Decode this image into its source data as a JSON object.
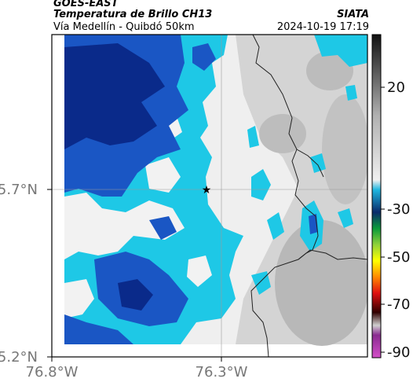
{
  "header": {
    "satellite": "GOES-EAST",
    "product": "Temperatura de Brillo CH13",
    "organization": "SIATA",
    "subtitle": "Vía Medellín - Quibdó 50km",
    "timestamp": "2024-10-19 17:19"
  },
  "map": {
    "lat_ticks": [
      "5.7°N",
      "5.2°N"
    ],
    "lon_ticks": [
      "76.8°W",
      "76.3°W"
    ],
    "marker_icon": "star-icon",
    "colors": {
      "deep_cold": "#0a2a8a",
      "cold": "#1a56c4",
      "cool": "#1ec8e6",
      "warm_cloud": "#f2f2f2",
      "land": "#c9c9c9",
      "border": "#333333"
    }
  },
  "colorbar": {
    "ticks": [
      "20",
      "-30",
      "-50",
      "-70",
      "-90"
    ],
    "stops": [
      "#111111",
      "#777777",
      "#e6e6e6",
      "#0b2e8c",
      "#1fb7e0",
      "#0a9a3a",
      "#8fd13a",
      "#ffff00",
      "#ff8a00",
      "#e01010",
      "#300000",
      "#cfcfcf",
      "#8a2a90",
      "#d34fc8"
    ]
  }
}
